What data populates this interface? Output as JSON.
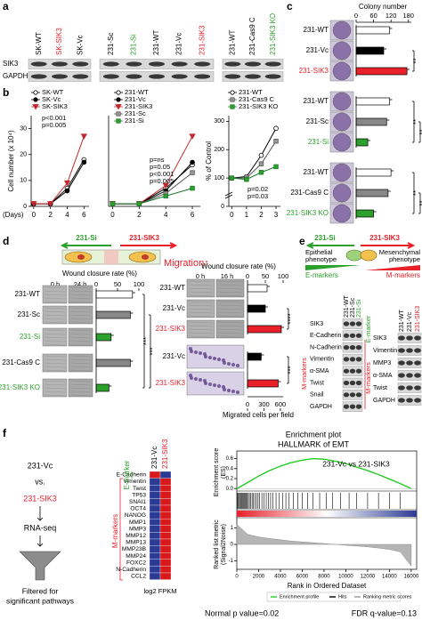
{
  "panels": {
    "a": {
      "letter": "a",
      "groups": [
        {
          "lanes": [
            "SK-WT",
            "SK-SIK3",
            "SK-Vc"
          ],
          "lane_colors": [
            "#000000",
            "#e8202a",
            "#000000"
          ]
        },
        {
          "lanes": [
            "231-Sc",
            "231-Si",
            "231-WT",
            "231-Vc",
            "231-SIK3"
          ],
          "lane_colors": [
            "#000000",
            "#2ca02c",
            "#000000",
            "#000000",
            "#e8202a"
          ]
        },
        {
          "lanes": [
            "231-WT",
            "231-Cas9 C",
            "231-SIK3 KO"
          ],
          "lane_colors": [
            "#000000",
            "#000000",
            "#2ca02c"
          ]
        }
      ],
      "rows": [
        "SIK3",
        "GAPDH"
      ]
    },
    "b": {
      "letter": "b",
      "plots": [
        {
          "type": "line",
          "ylabel": "Cell number (x 10⁴)",
          "xlabel": "(Days)",
          "x": [
            0,
            2,
            4,
            6
          ],
          "xlim": [
            -0.3,
            6.6
          ],
          "xticks": [
            0,
            2,
            4,
            6
          ],
          "ylim": [
            0,
            35
          ],
          "yticks": [
            0,
            10,
            20,
            30
          ],
          "series": [
            {
              "name": "SK-WT",
              "color": "#000000",
              "fill": "#ffffff",
              "marker": "circle",
              "values": [
                1,
                1,
                7,
                18
              ]
            },
            {
              "name": "SK-Vc",
              "color": "#000000",
              "fill": "#000000",
              "marker": "circle",
              "values": [
                1,
                1,
                6,
                17
              ]
            },
            {
              "name": "SK-SIK3",
              "color": "#c0282d",
              "fill": "#c0282d",
              "marker": "triangle",
              "values": [
                1,
                1,
                9,
                27
              ]
            }
          ],
          "annotations": [
            "p<0.001",
            "p=0.005"
          ]
        },
        {
          "type": "line",
          "x": [
            0,
            2,
            4,
            6
          ],
          "xlim": [
            -0.3,
            6.6
          ],
          "xticks": [
            0,
            2,
            4,
            6
          ],
          "ylim": [
            0,
            35
          ],
          "series": [
            {
              "name": "231-WT",
              "color": "#000000",
              "fill": "#ffffff",
              "marker": "circle",
              "values": [
                1,
                1,
                7,
                16
              ]
            },
            {
              "name": "231-Vc",
              "color": "#000000",
              "fill": "#000000",
              "marker": "circle",
              "values": [
                1,
                1,
                6,
                17
              ]
            },
            {
              "name": "231-SIK3",
              "color": "#c0282d",
              "fill": "#c0282d",
              "marker": "triangle",
              "values": [
                1,
                1,
                8,
                27
              ]
            },
            {
              "name": "231-Sc",
              "color": "#555555",
              "fill": "#999999",
              "marker": "square",
              "values": [
                1,
                1,
                5,
                13
              ]
            },
            {
              "name": "231-Si",
              "color": "#1a7a2a",
              "fill": "#2ca02c",
              "marker": "square",
              "values": [
                1,
                1,
                4,
                7
              ]
            }
          ],
          "annotations": [
            "p=ns",
            "p=0.05",
            "p<0.001",
            "p=0.005"
          ]
        },
        {
          "type": "line",
          "ylabel": "% of Control",
          "x": [
            0,
            1,
            2,
            3
          ],
          "xlim": [
            -0.2,
            3.3
          ],
          "xticks": [
            0,
            1,
            2,
            3
          ],
          "ylim": [
            0,
            320
          ],
          "yticks": [
            0,
            100,
            200,
            300
          ],
          "series": [
            {
              "name": "231-WT",
              "color": "#000000",
              "fill": "#ffffff",
              "marker": "circle",
              "values": [
                100,
                105,
                180,
                275
              ]
            },
            {
              "name": "231-Cas9 C",
              "color": "#555555",
              "fill": "#999999",
              "marker": "square",
              "values": [
                100,
                100,
                150,
                230
              ]
            },
            {
              "name": "231-SIK3 KO",
              "color": "#1a7a2a",
              "fill": "#2ca02c",
              "marker": "square",
              "values": [
                100,
                95,
                120,
                140
              ]
            }
          ],
          "annotations": [
            "p=0.02",
            "p=0.03"
          ]
        }
      ]
    },
    "c": {
      "letter": "c",
      "title": "Colony number",
      "xlim": [
        0,
        190
      ],
      "xticks": [
        0,
        60,
        120,
        180
      ],
      "groups": [
        {
          "categories": [
            "231-WT",
            "231-Vc",
            "231-SIK3"
          ],
          "values": [
            115,
            95,
            175
          ],
          "colors": [
            "#ffffff",
            "#000000",
            "#e8202a"
          ],
          "label_colors": [
            "#000000",
            "#000000",
            "#e8202a"
          ],
          "sig": [
            "**"
          ]
        },
        {
          "categories": [
            "231-WT",
            "231-Sc",
            "231-Si"
          ],
          "values": [
            115,
            105,
            40
          ],
          "colors": [
            "#ffffff",
            "#888888",
            "#2ca02c"
          ],
          "label_colors": [
            "#000000",
            "#000000",
            "#2ca02c"
          ],
          "sig": [
            "**",
            "**"
          ]
        },
        {
          "categories": [
            "231-WT",
            "231-Cas9 C",
            "231-SIK3 KO"
          ],
          "values": [
            120,
            110,
            60
          ],
          "colors": [
            "#ffffff",
            "#888888",
            "#2ca02c"
          ],
          "label_colors": [
            "#000000",
            "#000000",
            "#2ca02c"
          ],
          "sig": [
            "**",
            "**"
          ]
        }
      ]
    },
    "d": {
      "letter": "d",
      "left_arrow": "231-Si",
      "right_arrow": "231-SIK3",
      "migration": "Migration↑",
      "wound_left": {
        "title": "Wound closure rate (%)",
        "times": [
          "0 h",
          "24 h"
        ],
        "xlim": [
          0,
          100
        ],
        "xticks": [
          0,
          50,
          100
        ],
        "categories": [
          "231-WT",
          "231-Sc",
          "231-Si",
          "231-Cas9 C",
          "231-SIK3 KO"
        ],
        "values": [
          85,
          80,
          35,
          80,
          30
        ],
        "colors": [
          "#ffffff",
          "#888888",
          "#2ca02c",
          "#888888",
          "#2ca02c"
        ],
        "label_colors": [
          "#000000",
          "#000000",
          "#2ca02c",
          "#000000",
          "#2ca02c"
        ],
        "sig": [
          "***",
          "***"
        ]
      },
      "wound_right": {
        "title": "Wound closure rate (%)",
        "times": [
          "0 h",
          "16 h"
        ],
        "xlim": [
          0,
          100
        ],
        "xticks": [
          0,
          50,
          100
        ],
        "categories": [
          "231-WT",
          "231-Vc",
          "231-SIK3"
        ],
        "values": [
          55,
          50,
          95
        ],
        "colors": [
          "#ffffff",
          "#000000",
          "#e8202a"
        ],
        "label_colors": [
          "#000000",
          "#000000",
          "#e8202a"
        ],
        "sig": [
          "****"
        ]
      },
      "migrated": {
        "title": "Migrated cells per field",
        "xlim": [
          0,
          650
        ],
        "xticks": [
          0,
          300,
          600
        ],
        "categories": [
          "231-Vc",
          "231-SIK3"
        ],
        "values": [
          250,
          560
        ],
        "colors": [
          "#000000",
          "#e8202a"
        ],
        "label_colors": [
          "#000000",
          "#e8202a"
        ],
        "sig": [
          "***"
        ]
      }
    },
    "e": {
      "letter": "e",
      "left_arrow": "231-Si",
      "right_arrow": "231-SIK3",
      "left_phenotype": [
        "Epithelial",
        "phenotype"
      ],
      "right_phenotype": [
        "Mesenchymal",
        "phenotype"
      ],
      "e_markers": "E-markers",
      "m_markers": "M-markers",
      "blots": [
        {
          "lanes": [
            "231-WT",
            "231-Sc",
            "231-Si"
          ],
          "lane_colors": [
            "#000000",
            "#000000",
            "#2ca02c"
          ],
          "rows": [
            "SIK3",
            "E-Cadherin",
            "N-Cadherin",
            "Vimentin",
            "α-SMA",
            "Twist",
            "Snail",
            "GAPDH"
          ],
          "side_labels": [
            {
              "text": "E-marker",
              "color": "#2ca02c"
            },
            {
              "text": "M-markers",
              "color": "#e8202a"
            }
          ]
        },
        {
          "lanes": [
            "231-WT",
            "231-Vc",
            "231-SIK3"
          ],
          "lane_colors": [
            "#000000",
            "#000000",
            "#e8202a"
          ],
          "rows": [
            "SIK3",
            "Vimentin",
            "MMP3",
            "α-SMA",
            "Twist",
            "GAPDH"
          ],
          "side_labels": [
            {
              "text": "M-markers",
              "color": "#e8202a"
            }
          ]
        }
      ]
    },
    "f": {
      "letter": "f",
      "flow": [
        "231-Vc",
        "vs.",
        "231-SIK3",
        "RNA-seq"
      ],
      "flow_colors": [
        "#000000",
        "#000000",
        "#e8202a",
        "#000000"
      ],
      "filtered": [
        "Filtered for",
        "significant pathways"
      ],
      "heatmap": {
        "columns": [
          "231-Vc",
          "231-SIK3"
        ],
        "column_colors": [
          "#000000",
          "#e8202a"
        ],
        "rows": [
          "E-Cadherin",
          "Vimentin",
          "Twist",
          "TP53",
          "SNAI1",
          "OCT4",
          "NANOG",
          "MMP1",
          "MMP3",
          "MMP12",
          "MMP13",
          "MMP23B",
          "MMP24",
          "FOXC2",
          "N-Cadherin",
          "CCL2"
        ],
        "cell_colors": [
          [
            "#d7191c",
            "#2b3a94"
          ],
          [
            "#2b3a94",
            "#d7191c"
          ],
          [
            "#2b3a94",
            "#d7191c"
          ],
          [
            "#2b3a94",
            "#d7191c"
          ],
          [
            "#2b3a94",
            "#d7191c"
          ],
          [
            "#2b3a94",
            "#d7191c"
          ],
          [
            "#2b3a94",
            "#d7191c"
          ],
          [
            "#2b3a94",
            "#d7191c"
          ],
          [
            "#2b3a94",
            "#d7191c"
          ],
          [
            "#2b3a94",
            "#d7191c"
          ],
          [
            "#2b3a94",
            "#d7191c"
          ],
          [
            "#2b3a94",
            "#d7191c"
          ],
          [
            "#2b3a94",
            "#d7191c"
          ],
          [
            "#2b3a94",
            "#d7191c"
          ],
          [
            "#2b3a94",
            "#d7191c"
          ],
          [
            "#2b3a94",
            "#d7191c"
          ]
        ],
        "e_label": "E-marker",
        "m_label": "M-markers",
        "scale_label": "log2 FPKM"
      },
      "gsea": {
        "title": "Enrichment plot",
        "subtitle": "HALLMARK of EMT",
        "comparison": "231-Vc vs 231-SIK3",
        "ylabel": [
          "Enrichment score",
          "(ES)"
        ],
        "metric_ylabel": [
          "Ranked list metric",
          "(Signal2Noise)"
        ],
        "xlabel": "Rank in Ordered Dataset",
        "x": [
          0,
          1000,
          2000,
          3000,
          4000,
          5000,
          6000,
          7000,
          8000,
          9000,
          10000,
          11000,
          12000,
          13000,
          14000,
          15000,
          16000
        ],
        "es": [
          0,
          0.12,
          0.25,
          0.36,
          0.45,
          0.52,
          0.57,
          0.6,
          0.59,
          0.55,
          0.5,
          0.43,
          0.36,
          0.28,
          0.19,
          0.1,
          0
        ],
        "metric": [
          1.2,
          0.6,
          0.45,
          0.35,
          0.28,
          0.2,
          0.15,
          0.1,
          0.05,
          0,
          -0.05,
          -0.1,
          -0.15,
          -0.22,
          -0.3,
          -0.45,
          -1.3
        ],
        "hits": [
          50,
          120,
          200,
          310,
          380,
          450,
          520,
          600,
          700,
          780,
          850,
          950,
          1050,
          1150,
          1250,
          1400,
          1500,
          1650,
          1800,
          1950,
          2100,
          2300,
          2500,
          2700,
          2900,
          3100,
          3300,
          3600,
          3900,
          4200,
          4500,
          4800,
          5200,
          5600,
          6000,
          6500,
          7000,
          7600,
          8200,
          8800,
          9500,
          10300,
          11000,
          12000,
          13000,
          14000,
          15000
        ],
        "xlim": [
          0,
          16500
        ],
        "xticks": [
          0,
          2000,
          4000,
          6000,
          8000,
          10000,
          12000,
          14000,
          16000
        ],
        "ylim": [
          -0.05,
          0.7
        ],
        "yticks": [
          {
            "value": 0,
            "label": "0.0"
          },
          0.2,
          0.4,
          0.6
        ],
        "metric_ylim": [
          -1.5,
          1.5
        ],
        "metric_yticks": [
          -1,
          0,
          1
        ],
        "es_color": "#22cc22",
        "legend": [
          "Enrichment profile",
          "Hits",
          "Ranking metric scores"
        ],
        "p_value": "Normal p value=0.02",
        "fdr": "FDR q-value=0.13"
      }
    }
  }
}
